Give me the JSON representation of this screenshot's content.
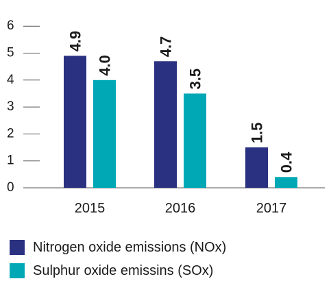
{
  "chart_data": {
    "type": "bar",
    "categories": [
      "2015",
      "2016",
      "2017"
    ],
    "series": [
      {
        "name": "Nitrogen oxide emissions (NOx)",
        "values": [
          4.9,
          4.7,
          1.5
        ],
        "labels": [
          "4.9",
          "4.7",
          "1.5"
        ],
        "color": "#2b3181"
      },
      {
        "name": "Sulphur oxide emissins (SOx)",
        "values": [
          4.0,
          3.5,
          0.4
        ],
        "labels": [
          "4.0",
          "3.5",
          "0.4"
        ],
        "color": "#00a8b5"
      }
    ],
    "ylim": [
      0,
      6
    ],
    "yticks": [
      "0",
      "1",
      "2",
      "3",
      "4",
      "5",
      "6"
    ],
    "legend_position": "bottom-left",
    "grid": false
  }
}
